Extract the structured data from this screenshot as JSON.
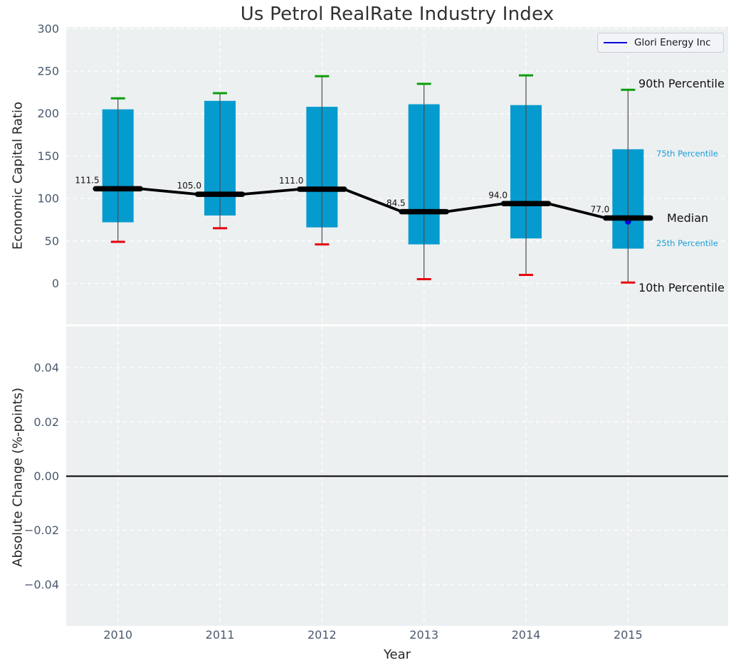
{
  "title": "Us Petrol RealRate Industry Index",
  "legend": {
    "label": "Glori Energy Inc",
    "line_color": "#0000dc"
  },
  "annotations": {
    "p90": "90th Percentile",
    "p75": "75th Percentile",
    "median": "Median",
    "p25": "25th Percentile",
    "p10": "10th Percentile"
  },
  "colors": {
    "plot_background": "#ecf0f1",
    "gridline": "#ffffff",
    "box_fill": "#059bce",
    "whisker": "#4d4d4d",
    "cap_top_green": "#0b9e0b",
    "cap_bottom_red": "#e8000d",
    "median_line": "#000000",
    "company_marker_blue": "#0000dc",
    "tick_text": "#4a5a6f",
    "zero_line": "#000000"
  },
  "chart_data": [
    {
      "type": "box",
      "title": "Us Petrol RealRate Industry Index",
      "xlabel": "Year",
      "ylabel": "Economic Capital Ratio",
      "categories": [
        "2010",
        "2011",
        "2012",
        "2013",
        "2014",
        "2015"
      ],
      "yticks": [
        "300",
        "250",
        "200",
        "150",
        "100",
        "50",
        "0"
      ],
      "ytick_values": [
        300,
        250,
        200,
        150,
        100,
        50,
        0
      ],
      "ylim": [
        -48,
        304
      ],
      "grid": true,
      "legend_position": "upper right",
      "series": [
        {
          "name": "90th Percentile",
          "values": [
            218,
            224,
            244,
            235,
            245,
            228
          ]
        },
        {
          "name": "75th Percentile",
          "values": [
            205,
            215,
            208,
            211,
            210,
            158
          ]
        },
        {
          "name": "Median",
          "values": [
            111.5,
            105.0,
            111.0,
            84.5,
            94.0,
            77.0
          ]
        },
        {
          "name": "25th Percentile",
          "values": [
            72,
            80,
            66,
            46,
            53,
            41
          ]
        },
        {
          "name": "10th Percentile",
          "values": [
            49,
            65,
            46,
            5,
            10,
            1
          ]
        }
      ],
      "median_labels": [
        "111.5",
        "105.0",
        "111.0",
        "84.5",
        "94.0",
        "77.0"
      ],
      "company_point": {
        "name": "Glori Energy Inc",
        "x": "2015",
        "y": 73
      }
    },
    {
      "type": "line",
      "title": "",
      "xlabel": "Year",
      "ylabel": "Absolute Change (%-points)",
      "categories": [
        "2010",
        "2011",
        "2012",
        "2013",
        "2014",
        "2015"
      ],
      "yticks": [
        "0.04",
        "0.02",
        "0.00",
        "−0.02",
        "−0.04"
      ],
      "ytick_values": [
        0.04,
        0.02,
        0,
        -0.02,
        -0.04
      ],
      "ylim": [
        -0.055,
        0.055
      ],
      "grid": true,
      "zero_line": 0.0,
      "series": []
    }
  ]
}
